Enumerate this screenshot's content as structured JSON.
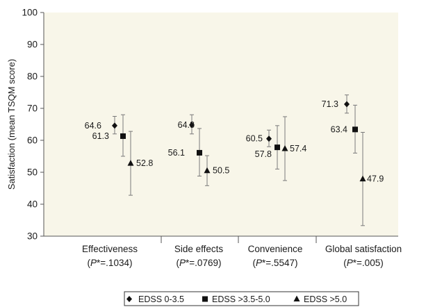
{
  "chart_data": {
    "type": "scatter",
    "ylabel": "Satisfaction (mean TSQM score)",
    "xlabel": "",
    "title": "",
    "ylim": [
      30,
      100
    ],
    "yticks": [
      30,
      40,
      50,
      60,
      70,
      80,
      90,
      100
    ],
    "grid": false,
    "legend_position": "bottom",
    "categories": [
      {
        "name": "Effectiveness",
        "p_prefix": "(",
        "p_symbol": "P",
        "p_value": "*=.1034)"
      },
      {
        "name": "Side effects",
        "p_prefix": "(",
        "p_symbol": "P",
        "p_value": "*=.0769)"
      },
      {
        "name": "Convenience",
        "p_prefix": "(",
        "p_symbol": "P",
        "p_value": "*=.5547)"
      },
      {
        "name": "Global satisfaction",
        "p_prefix": "(",
        "p_symbol": "P",
        "p_value": "*=.005)"
      }
    ],
    "series": [
      {
        "name": "EDSS 0-3.5",
        "marker": "diamond",
        "values": [
          64.6,
          64.8,
          60.5,
          71.3
        ],
        "error_low": [
          62.0,
          62.0,
          58.0,
          68.5
        ],
        "error_high": [
          67.5,
          68.0,
          63.2,
          74.2
        ],
        "labels": [
          "64.6",
          "64.8",
          "60.5",
          "71.3"
        ]
      },
      {
        "name": "EDSS >3.5-5.0",
        "marker": "square",
        "values": [
          61.3,
          56.1,
          57.8,
          63.4
        ],
        "error_low": [
          55.0,
          48.8,
          51.0,
          56.0
        ],
        "error_high": [
          68.0,
          63.7,
          64.6,
          71.0
        ],
        "labels": [
          "61.3",
          "56.1",
          "57.8",
          "63.4"
        ]
      },
      {
        "name": "EDSS >5.0",
        "marker": "triangle",
        "values": [
          52.8,
          50.5,
          57.4,
          47.9
        ],
        "error_low": [
          42.8,
          45.8,
          47.4,
          33.3
        ],
        "error_high": [
          62.8,
          55.2,
          67.4,
          62.5
        ],
        "labels": [
          "52.8",
          "50.5",
          "57.4",
          "47.9"
        ]
      }
    ]
  }
}
